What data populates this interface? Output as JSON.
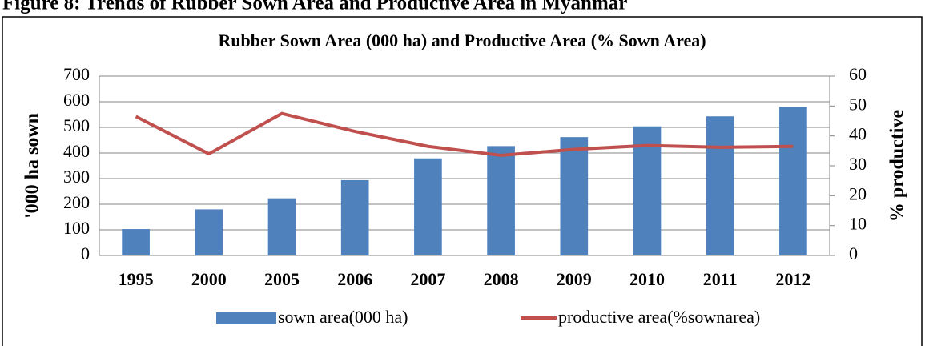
{
  "caption": "Figure 8: Trends of Rubber Sown Area and Productive Area in Myanmar",
  "chart_data": {
    "type": "bar",
    "title": "Rubber Sown Area (000 ha) and Productive Area (% Sown Area)",
    "categories": [
      "1995",
      "2000",
      "2005",
      "2006",
      "2007",
      "2008",
      "2009",
      "2010",
      "2011",
      "2012"
    ],
    "series": [
      {
        "name": "sown area(000 ha)",
        "color": "#4f81bd",
        "values": [
          103,
          180,
          223,
          294,
          379,
          427,
          462,
          504,
          543,
          580
        ]
      },
      {
        "name": "productive area(%sownarea)",
        "type": "line",
        "axis": "y2",
        "color": "#c0504d",
        "values": [
          46.5,
          34,
          47.5,
          41.5,
          36.5,
          33.5,
          35.5,
          36.8,
          36.2,
          36.5
        ]
      }
    ],
    "y_label": "'000 ha sown",
    "y2_label": "% productive",
    "ylim": [
      0,
      700
    ],
    "yticks": [
      0,
      100,
      200,
      300,
      400,
      500,
      600,
      700
    ],
    "y2lim": [
      0,
      60
    ],
    "y2ticks": [
      0,
      10,
      20,
      30,
      40,
      50,
      60
    ],
    "grid": true
  }
}
